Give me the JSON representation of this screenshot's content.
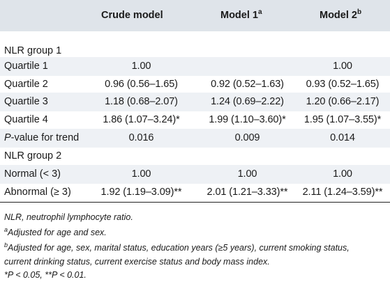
{
  "table": {
    "headers": {
      "crude": "Crude model",
      "model1": "Model 1",
      "model1_sup": "a",
      "model2": "Model 2",
      "model2_sup": "b"
    },
    "rows": [
      {
        "label": "NLR group 1",
        "c1": "",
        "c2": "",
        "c3": ""
      },
      {
        "label": "Quartile 1",
        "c1": "1.00",
        "c2": "",
        "c3": "1.00"
      },
      {
        "label": "Quartile 2",
        "c1": "0.96 (0.56–1.65)",
        "c2": "0.92 (0.52–1.63)",
        "c3": "0.93 (0.52–1.65)"
      },
      {
        "label": "Quartile 3",
        "c1": "1.18 (0.68–2.07)",
        "c2": "1.24 (0.69–2.22)",
        "c3": "1.20 (0.66–2.17)"
      },
      {
        "label": "Quartile 4",
        "c1": "1.86 (1.07–3.24)*",
        "c2": "1.99 (1.10–3.60)*",
        "c3": "1.95 (1.07–3.55)*"
      },
      {
        "label_italic": "P",
        "label": "-value for trend",
        "c1": "0.016",
        "c2": "0.009",
        "c3": "0.014"
      },
      {
        "label": "NLR group 2",
        "c1": "",
        "c2": "",
        "c3": ""
      },
      {
        "label": "Normal (< 3)",
        "c1": "1.00",
        "c2": "1.00",
        "c3": "1.00"
      },
      {
        "label": "Abnormal (≥ 3)",
        "c1": "1.92 (1.19–3.09)**",
        "c2": "2.01 (1.21–3.33)**",
        "c3": "2.11 (1.24–3.59)**"
      }
    ]
  },
  "footnotes": {
    "abbrev": "NLR, neutrophil lymphocyte ratio.",
    "a_mark": "a",
    "a_text": "Adjusted for age and sex.",
    "b_mark": "b",
    "b_text_line1": "Adjusted for age, sex, marital status, education years (≥5 years), current smoking status,",
    "b_text_line2": "current drinking status, current exercise status and body mass index.",
    "sig": "*P < 0.05, **P < 0.01."
  },
  "colors": {
    "header_bg": "#dfe4ea",
    "stripe_bg": "#eef1f5"
  }
}
